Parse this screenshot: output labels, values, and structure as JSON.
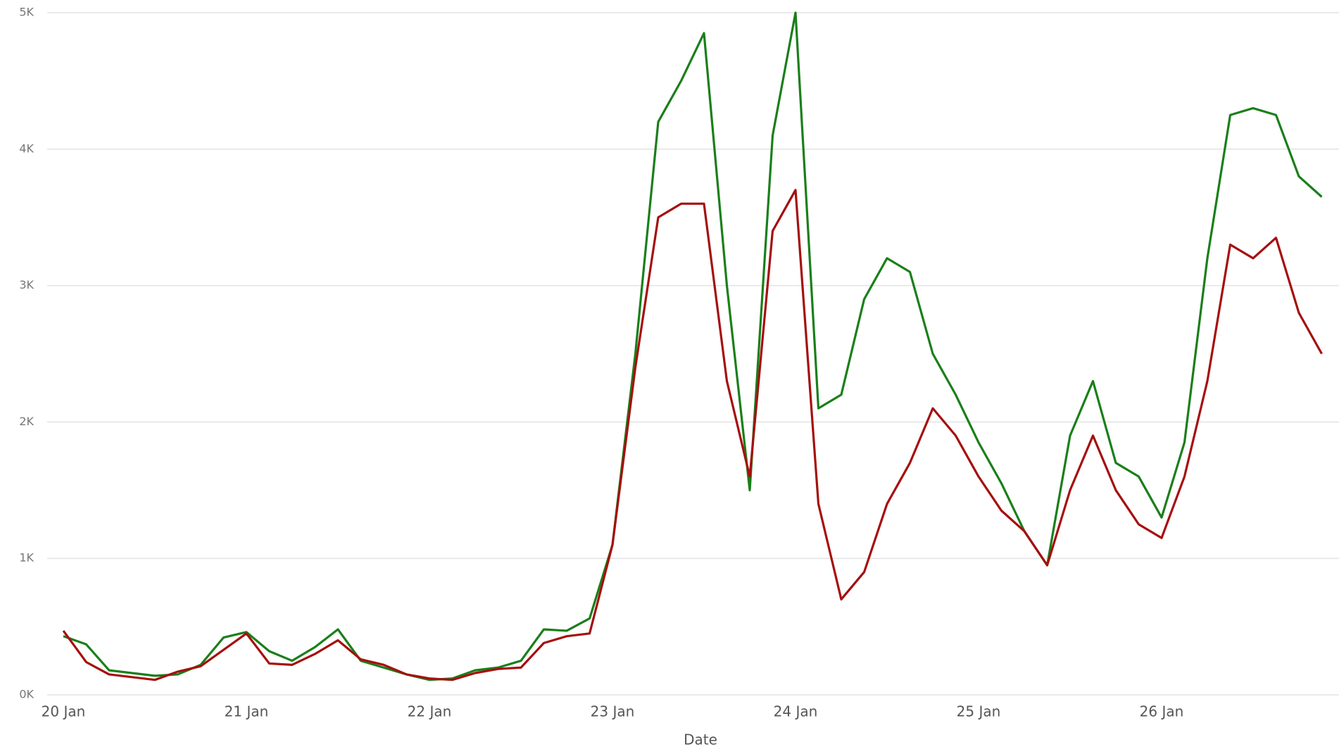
{
  "chart_data": {
    "type": "line",
    "x_label": "Date",
    "categories": [
      "20 Jan",
      null,
      null,
      null,
      null,
      null,
      null,
      null,
      "21 Jan",
      null,
      null,
      null,
      null,
      null,
      null,
      null,
      "22 Jan",
      null,
      null,
      null,
      null,
      null,
      null,
      null,
      "23 Jan",
      null,
      null,
      null,
      null,
      null,
      null,
      null,
      "24 Jan",
      null,
      null,
      null,
      null,
      null,
      null,
      null,
      "25 Jan",
      null,
      null,
      null,
      null,
      null,
      null,
      null,
      "26 Jan",
      null,
      null,
      null,
      null,
      null,
      null,
      null
    ],
    "series": [
      {
        "color": "#1a7f1a",
        "values": [
          430,
          370,
          180,
          160,
          140,
          150,
          220,
          420,
          460,
          320,
          250,
          350,
          480,
          250,
          200,
          150,
          110,
          120,
          180,
          200,
          250,
          480,
          470,
          560,
          1100,
          2500,
          4200,
          4500,
          4850,
          3000,
          1500,
          4100,
          5000,
          2100,
          2200,
          2900,
          3200,
          3100,
          2500,
          2200,
          1850,
          1550,
          1200,
          950,
          1900,
          2300,
          1700,
          1600,
          1300,
          1850,
          3200,
          4250,
          4300,
          4250,
          3800,
          3650
        ]
      },
      {
        "color": "#a50f0f",
        "values": [
          470,
          240,
          150,
          130,
          110,
          170,
          210,
          330,
          450,
          230,
          220,
          300,
          400,
          260,
          220,
          150,
          120,
          110,
          160,
          190,
          200,
          380,
          430,
          450,
          1100,
          2400,
          3500,
          3600,
          3600,
          2300,
          1600,
          3400,
          3700,
          1400,
          700,
          900,
          1400,
          1700,
          2100,
          1900,
          1600,
          1350,
          1200,
          950,
          1500,
          1900,
          1500,
          1250,
          1150,
          1600,
          2300,
          3300,
          3200,
          3350,
          2800,
          2500
        ]
      }
    ],
    "ylim": [
      0,
      5000
    ],
    "yticks": [
      {
        "value": 0,
        "label": "0K"
      },
      {
        "value": 1000,
        "label": "1K"
      },
      {
        "value": 2000,
        "label": "2K"
      },
      {
        "value": 3000,
        "label": "3K"
      },
      {
        "value": 4000,
        "label": "4K"
      },
      {
        "value": 5000,
        "label": "5K"
      }
    ],
    "grid": true
  }
}
